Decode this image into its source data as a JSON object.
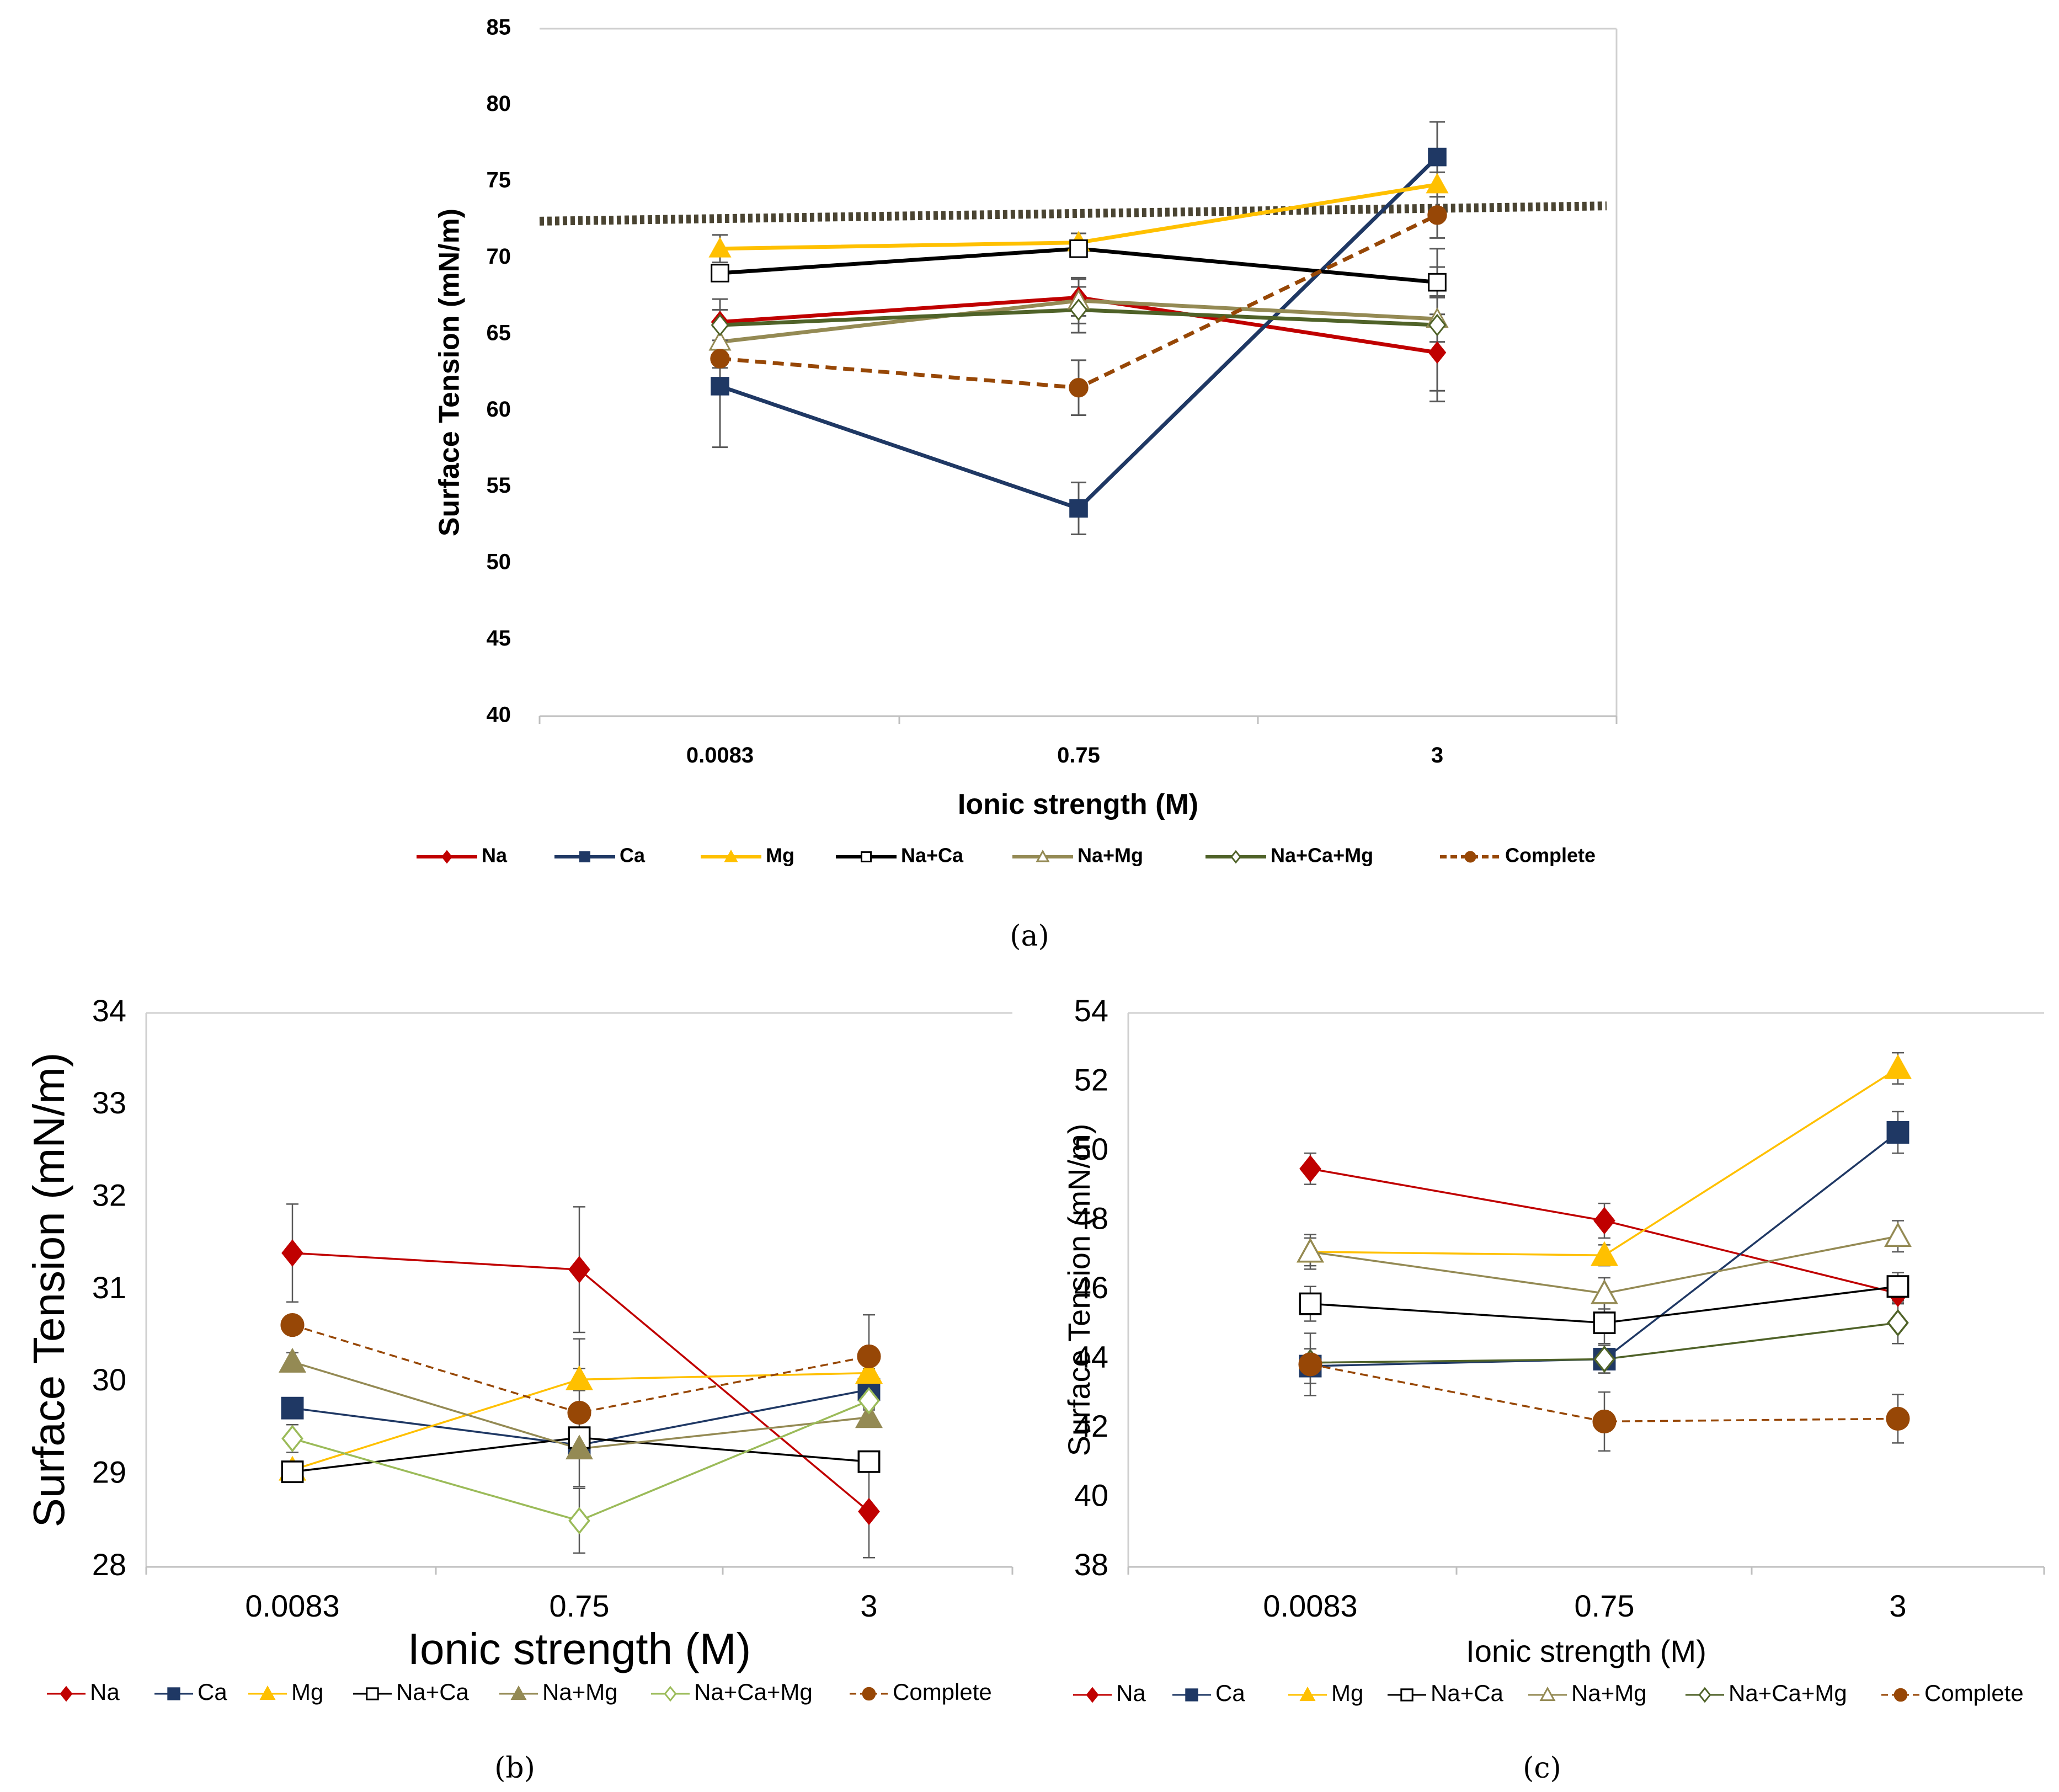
{
  "captions": {
    "a": "(a)",
    "b": "(b)",
    "c": "(c)"
  },
  "chart_data": [
    {
      "id": "a",
      "type": "line",
      "xlabel": "Ionic strength (M)",
      "ylabel": "Surface Tension (mN/m)",
      "categories": [
        "0.0083",
        "0.75",
        "3"
      ],
      "ylim": [
        40,
        85
      ],
      "yticks": [
        40,
        45,
        50,
        55,
        60,
        65,
        70,
        75,
        80,
        85
      ],
      "reference_line": {
        "y_start": 72.4,
        "y_end": 73.4,
        "color": "#4a4432"
      },
      "series": [
        {
          "name": "Na",
          "color": "#c00000",
          "marker": "diamond",
          "filled": true,
          "values": [
            65.8,
            67.4,
            63.8
          ],
          "errors": [
            1.5,
            1.2,
            2.5
          ]
        },
        {
          "name": "Ca",
          "color": "#1f3864",
          "marker": "square",
          "filled": true,
          "values": [
            61.6,
            53.6,
            76.6
          ],
          "errors": [
            4.0,
            1.7,
            2.3
          ]
        },
        {
          "name": "Mg",
          "color": "#ffc000",
          "marker": "triangle",
          "filled": true,
          "values": [
            70.6,
            71.0,
            74.8
          ],
          "errors": [
            0.9,
            0.6,
            0.8
          ]
        },
        {
          "name": "Na+Ca",
          "color": "#000000",
          "marker": "square",
          "filled": false,
          "values": [
            69.0,
            70.6,
            68.4
          ],
          "errors": [
            0.5,
            0.5,
            1.0
          ]
        },
        {
          "name": "Na+Mg",
          "color": "#948a54",
          "marker": "triangle",
          "filled": false,
          "values": [
            64.5,
            67.2,
            66.0
          ],
          "errors": [
            1.0,
            1.5,
            1.5
          ]
        },
        {
          "name": "Na+Ca+Mg",
          "color": "#4f6228",
          "marker": "diamond",
          "filled": false,
          "values": [
            65.6,
            66.6,
            65.6
          ],
          "errors": [
            1.0,
            1.5,
            5.0
          ]
        },
        {
          "name": "Complete",
          "color": "#974706",
          "marker": "circle",
          "filled": true,
          "dashed": true,
          "values": [
            63.4,
            61.5,
            72.8
          ],
          "errors": [
            0.6,
            1.8,
            1.5
          ]
        }
      ]
    },
    {
      "id": "b",
      "type": "line",
      "xlabel": "Ionic strength (M)",
      "ylabel": "Surface Tension (mN/m)",
      "categories": [
        "0.0083",
        "0.75",
        "3"
      ],
      "ylim": [
        28,
        34
      ],
      "yticks": [
        28,
        29,
        30,
        31,
        32,
        33,
        34
      ],
      "series": [
        {
          "name": "Na",
          "color": "#c00000",
          "marker": "diamond",
          "filled": true,
          "values": [
            31.4,
            31.22,
            28.6
          ],
          "errors": [
            0.53,
            0.68,
            0.5
          ]
        },
        {
          "name": "Ca",
          "color": "#1f3864",
          "marker": "square",
          "filled": true,
          "values": [
            29.72,
            29.32,
            29.92
          ],
          "errors": [
            0.05,
            0.05,
            0.05
          ]
        },
        {
          "name": "Mg",
          "color": "#ffc000",
          "marker": "triangle",
          "filled": true,
          "values": [
            29.05,
            30.03,
            30.1
          ],
          "errors": [
            0.05,
            0.12,
            0.05
          ]
        },
        {
          "name": "Na+Ca",
          "color": "#000000",
          "marker": "square",
          "filled": false,
          "values": [
            29.03,
            29.4,
            29.14
          ],
          "errors": [
            0.05,
            0.05,
            0.05
          ]
        },
        {
          "name": "Na+Mg",
          "color": "#948a54",
          "marker": "triangle",
          "filled": true,
          "values": [
            30.22,
            29.28,
            29.62
          ],
          "errors": [
            0.1,
            0.1,
            0.1
          ]
        },
        {
          "name": "Na+Ca+Mg",
          "color": "#9bbb59",
          "marker": "diamond",
          "filled": false,
          "values": [
            29.39,
            28.5,
            29.8
          ],
          "errors": [
            0.15,
            0.35,
            0.1
          ]
        },
        {
          "name": "Complete",
          "color": "#974706",
          "marker": "circle",
          "filled": true,
          "dashed": true,
          "values": [
            30.62,
            29.67,
            30.28
          ],
          "errors": [
            0.1,
            0.8,
            0.45
          ]
        }
      ]
    },
    {
      "id": "c",
      "type": "line",
      "xlabel": "Ionic strength (M)",
      "ylabel": "Surface Tension (mN/m)",
      "categories": [
        "0.0083",
        "0.75",
        "3"
      ],
      "ylim": [
        38,
        54
      ],
      "yticks": [
        38,
        40,
        42,
        44,
        46,
        48,
        50,
        52,
        54
      ],
      "series": [
        {
          "name": "Na",
          "color": "#c00000",
          "marker": "diamond",
          "filled": true,
          "values": [
            49.5,
            48.0,
            45.9
          ],
          "errors": [
            0.45,
            0.5,
            0.3
          ]
        },
        {
          "name": "Ca",
          "color": "#1f3864",
          "marker": "square",
          "filled": true,
          "values": [
            43.8,
            44.0,
            50.55
          ],
          "errors": [
            0.5,
            0.4,
            0.6
          ]
        },
        {
          "name": "Mg",
          "color": "#ffc000",
          "marker": "triangle",
          "filled": true,
          "values": [
            47.1,
            47.0,
            52.4
          ],
          "errors": [
            0.4,
            0.3,
            0.45
          ]
        },
        {
          "name": "Na+Ca",
          "color": "#000000",
          "marker": "square",
          "filled": false,
          "values": [
            45.6,
            45.05,
            46.1
          ],
          "errors": [
            0.5,
            0.6,
            0.4
          ]
        },
        {
          "name": "Na+Mg",
          "color": "#948a54",
          "marker": "triangle",
          "filled": false,
          "values": [
            47.1,
            45.9,
            47.55
          ],
          "errors": [
            0.5,
            0.45,
            0.45
          ]
        },
        {
          "name": "Na+Ca+Mg",
          "color": "#4f6228",
          "marker": "diamond",
          "filled": false,
          "values": [
            43.9,
            44.0,
            45.05
          ],
          "errors": [
            0.4,
            0.4,
            0.6
          ]
        },
        {
          "name": "Complete",
          "color": "#974706",
          "marker": "circle",
          "filled": true,
          "dashed": true,
          "values": [
            43.85,
            42.2,
            42.28
          ],
          "errors": [
            0.9,
            0.85,
            0.7
          ]
        }
      ]
    }
  ]
}
